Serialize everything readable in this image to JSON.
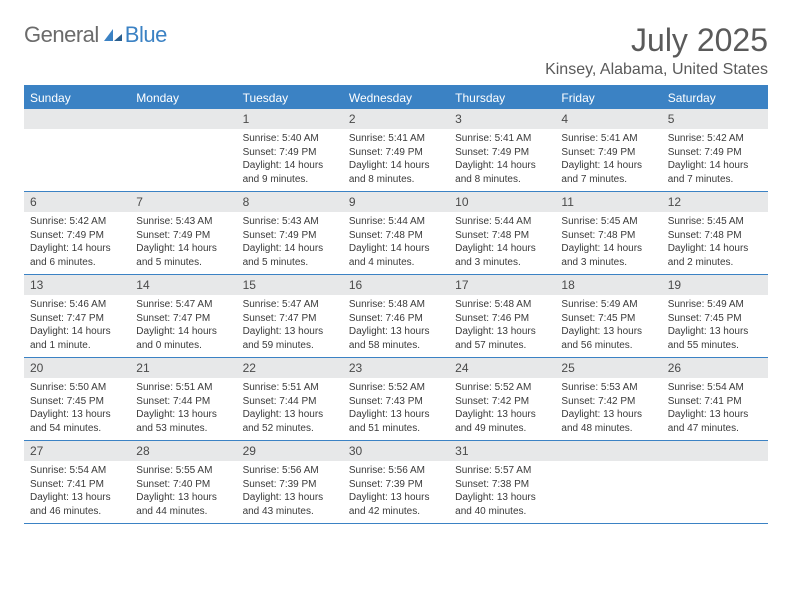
{
  "logo": {
    "text_general": "General",
    "text_blue": "Blue"
  },
  "title": "July 2025",
  "location": "Kinsey, Alabama, United States",
  "colors": {
    "header_bg": "#3b82c4",
    "daynum_bg": "#e7e8e9",
    "border": "#3b82c4"
  },
  "day_names": [
    "Sunday",
    "Monday",
    "Tuesday",
    "Wednesday",
    "Thursday",
    "Friday",
    "Saturday"
  ],
  "weeks": [
    [
      {
        "n": "",
        "sunrise": "",
        "sunset": "",
        "daylight": ""
      },
      {
        "n": "",
        "sunrise": "",
        "sunset": "",
        "daylight": ""
      },
      {
        "n": "1",
        "sunrise": "Sunrise: 5:40 AM",
        "sunset": "Sunset: 7:49 PM",
        "daylight": "Daylight: 14 hours and 9 minutes."
      },
      {
        "n": "2",
        "sunrise": "Sunrise: 5:41 AM",
        "sunset": "Sunset: 7:49 PM",
        "daylight": "Daylight: 14 hours and 8 minutes."
      },
      {
        "n": "3",
        "sunrise": "Sunrise: 5:41 AM",
        "sunset": "Sunset: 7:49 PM",
        "daylight": "Daylight: 14 hours and 8 minutes."
      },
      {
        "n": "4",
        "sunrise": "Sunrise: 5:41 AM",
        "sunset": "Sunset: 7:49 PM",
        "daylight": "Daylight: 14 hours and 7 minutes."
      },
      {
        "n": "5",
        "sunrise": "Sunrise: 5:42 AM",
        "sunset": "Sunset: 7:49 PM",
        "daylight": "Daylight: 14 hours and 7 minutes."
      }
    ],
    [
      {
        "n": "6",
        "sunrise": "Sunrise: 5:42 AM",
        "sunset": "Sunset: 7:49 PM",
        "daylight": "Daylight: 14 hours and 6 minutes."
      },
      {
        "n": "7",
        "sunrise": "Sunrise: 5:43 AM",
        "sunset": "Sunset: 7:49 PM",
        "daylight": "Daylight: 14 hours and 5 minutes."
      },
      {
        "n": "8",
        "sunrise": "Sunrise: 5:43 AM",
        "sunset": "Sunset: 7:49 PM",
        "daylight": "Daylight: 14 hours and 5 minutes."
      },
      {
        "n": "9",
        "sunrise": "Sunrise: 5:44 AM",
        "sunset": "Sunset: 7:48 PM",
        "daylight": "Daylight: 14 hours and 4 minutes."
      },
      {
        "n": "10",
        "sunrise": "Sunrise: 5:44 AM",
        "sunset": "Sunset: 7:48 PM",
        "daylight": "Daylight: 14 hours and 3 minutes."
      },
      {
        "n": "11",
        "sunrise": "Sunrise: 5:45 AM",
        "sunset": "Sunset: 7:48 PM",
        "daylight": "Daylight: 14 hours and 3 minutes."
      },
      {
        "n": "12",
        "sunrise": "Sunrise: 5:45 AM",
        "sunset": "Sunset: 7:48 PM",
        "daylight": "Daylight: 14 hours and 2 minutes."
      }
    ],
    [
      {
        "n": "13",
        "sunrise": "Sunrise: 5:46 AM",
        "sunset": "Sunset: 7:47 PM",
        "daylight": "Daylight: 14 hours and 1 minute."
      },
      {
        "n": "14",
        "sunrise": "Sunrise: 5:47 AM",
        "sunset": "Sunset: 7:47 PM",
        "daylight": "Daylight: 14 hours and 0 minutes."
      },
      {
        "n": "15",
        "sunrise": "Sunrise: 5:47 AM",
        "sunset": "Sunset: 7:47 PM",
        "daylight": "Daylight: 13 hours and 59 minutes."
      },
      {
        "n": "16",
        "sunrise": "Sunrise: 5:48 AM",
        "sunset": "Sunset: 7:46 PM",
        "daylight": "Daylight: 13 hours and 58 minutes."
      },
      {
        "n": "17",
        "sunrise": "Sunrise: 5:48 AM",
        "sunset": "Sunset: 7:46 PM",
        "daylight": "Daylight: 13 hours and 57 minutes."
      },
      {
        "n": "18",
        "sunrise": "Sunrise: 5:49 AM",
        "sunset": "Sunset: 7:45 PM",
        "daylight": "Daylight: 13 hours and 56 minutes."
      },
      {
        "n": "19",
        "sunrise": "Sunrise: 5:49 AM",
        "sunset": "Sunset: 7:45 PM",
        "daylight": "Daylight: 13 hours and 55 minutes."
      }
    ],
    [
      {
        "n": "20",
        "sunrise": "Sunrise: 5:50 AM",
        "sunset": "Sunset: 7:45 PM",
        "daylight": "Daylight: 13 hours and 54 minutes."
      },
      {
        "n": "21",
        "sunrise": "Sunrise: 5:51 AM",
        "sunset": "Sunset: 7:44 PM",
        "daylight": "Daylight: 13 hours and 53 minutes."
      },
      {
        "n": "22",
        "sunrise": "Sunrise: 5:51 AM",
        "sunset": "Sunset: 7:44 PM",
        "daylight": "Daylight: 13 hours and 52 minutes."
      },
      {
        "n": "23",
        "sunrise": "Sunrise: 5:52 AM",
        "sunset": "Sunset: 7:43 PM",
        "daylight": "Daylight: 13 hours and 51 minutes."
      },
      {
        "n": "24",
        "sunrise": "Sunrise: 5:52 AM",
        "sunset": "Sunset: 7:42 PM",
        "daylight": "Daylight: 13 hours and 49 minutes."
      },
      {
        "n": "25",
        "sunrise": "Sunrise: 5:53 AM",
        "sunset": "Sunset: 7:42 PM",
        "daylight": "Daylight: 13 hours and 48 minutes."
      },
      {
        "n": "26",
        "sunrise": "Sunrise: 5:54 AM",
        "sunset": "Sunset: 7:41 PM",
        "daylight": "Daylight: 13 hours and 47 minutes."
      }
    ],
    [
      {
        "n": "27",
        "sunrise": "Sunrise: 5:54 AM",
        "sunset": "Sunset: 7:41 PM",
        "daylight": "Daylight: 13 hours and 46 minutes."
      },
      {
        "n": "28",
        "sunrise": "Sunrise: 5:55 AM",
        "sunset": "Sunset: 7:40 PM",
        "daylight": "Daylight: 13 hours and 44 minutes."
      },
      {
        "n": "29",
        "sunrise": "Sunrise: 5:56 AM",
        "sunset": "Sunset: 7:39 PM",
        "daylight": "Daylight: 13 hours and 43 minutes."
      },
      {
        "n": "30",
        "sunrise": "Sunrise: 5:56 AM",
        "sunset": "Sunset: 7:39 PM",
        "daylight": "Daylight: 13 hours and 42 minutes."
      },
      {
        "n": "31",
        "sunrise": "Sunrise: 5:57 AM",
        "sunset": "Sunset: 7:38 PM",
        "daylight": "Daylight: 13 hours and 40 minutes."
      },
      {
        "n": "",
        "sunrise": "",
        "sunset": "",
        "daylight": ""
      },
      {
        "n": "",
        "sunrise": "",
        "sunset": "",
        "daylight": ""
      }
    ]
  ]
}
